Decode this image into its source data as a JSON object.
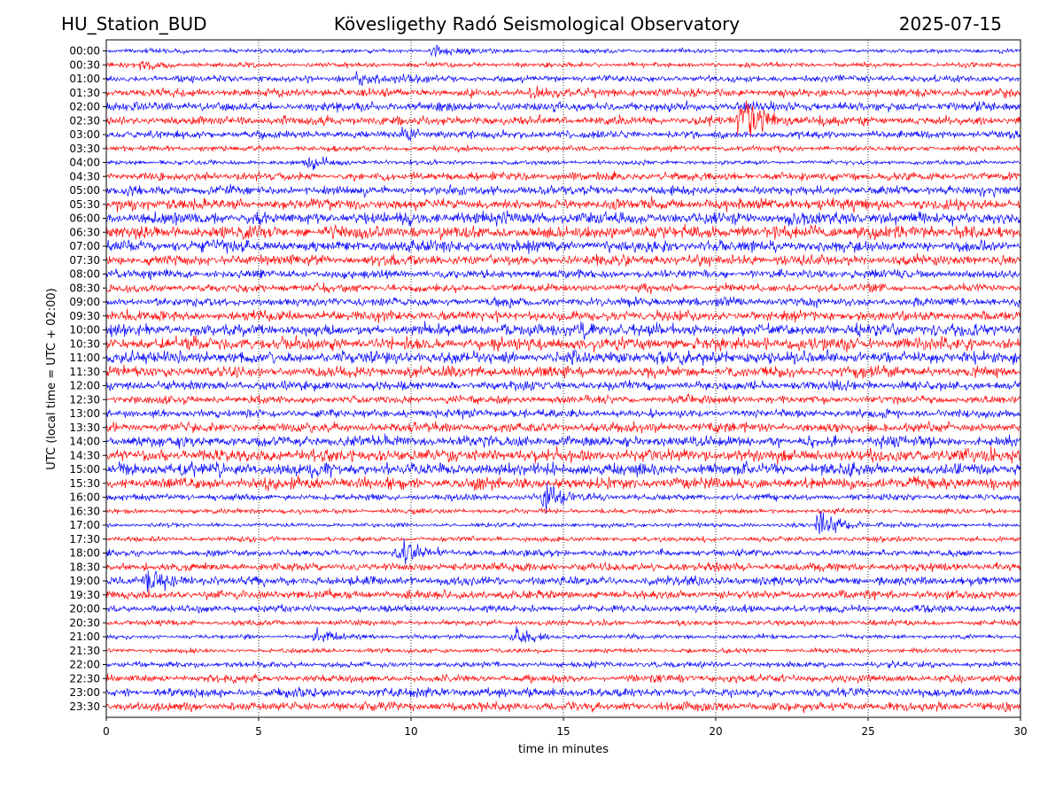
{
  "header": {
    "station": "HU_Station_BUD",
    "observatory": "Kövesligethy Radó Seismological Observatory",
    "date": "2025-07-15"
  },
  "chart_data": {
    "type": "line",
    "xlabel": "time in minutes",
    "ylabel": "UTC (local time = UTC + 02:00)",
    "xlim": [
      0,
      30
    ],
    "x_ticks": [
      0,
      5,
      10,
      15,
      20,
      25,
      30
    ],
    "grid": "vertical dotted at 5-minute ticks",
    "colors": [
      "#0000ff",
      "#ff0000"
    ],
    "rows": [
      "00:00",
      "00:30",
      "01:00",
      "01:30",
      "02:00",
      "02:30",
      "03:00",
      "03:30",
      "04:00",
      "04:30",
      "05:00",
      "05:30",
      "06:00",
      "06:30",
      "07:00",
      "07:30",
      "08:00",
      "08:30",
      "09:00",
      "09:30",
      "10:00",
      "10:30",
      "11:00",
      "11:30",
      "12:00",
      "12:30",
      "13:00",
      "13:30",
      "14:00",
      "14:30",
      "15:00",
      "15:30",
      "16:00",
      "16:30",
      "17:00",
      "17:30",
      "18:00",
      "18:30",
      "19:00",
      "19:30",
      "20:00",
      "20:30",
      "21:00",
      "21:30",
      "22:00",
      "22:30",
      "23:00",
      "23:30"
    ],
    "events": [
      {
        "row": "00:00",
        "minute": 10.7,
        "strength": 2
      },
      {
        "row": "00:30",
        "minute": 1.2,
        "strength": 1.5
      },
      {
        "row": "01:00",
        "minute": 8.2,
        "strength": 1.5
      },
      {
        "row": "01:30",
        "minute": 13.9,
        "strength": 1.2
      },
      {
        "row": "02:30",
        "minute": 20.8,
        "strength": 6
      },
      {
        "row": "03:00",
        "minute": 9.7,
        "strength": 1.3
      },
      {
        "row": "04:00",
        "minute": 6.6,
        "strength": 1.4
      },
      {
        "row": "10:00",
        "minute": 15.5,
        "strength": 1.4
      },
      {
        "row": "16:00",
        "minute": 14.4,
        "strength": 3.5
      },
      {
        "row": "17:00",
        "minute": 23.4,
        "strength": 4
      },
      {
        "row": "18:00",
        "minute": 9.6,
        "strength": 3
      },
      {
        "row": "19:00",
        "minute": 1.3,
        "strength": 2.5
      },
      {
        "row": "21:00",
        "minute": 6.9,
        "strength": 1.8
      },
      {
        "row": "21:00",
        "minute": 13.4,
        "strength": 1.8
      }
    ]
  }
}
